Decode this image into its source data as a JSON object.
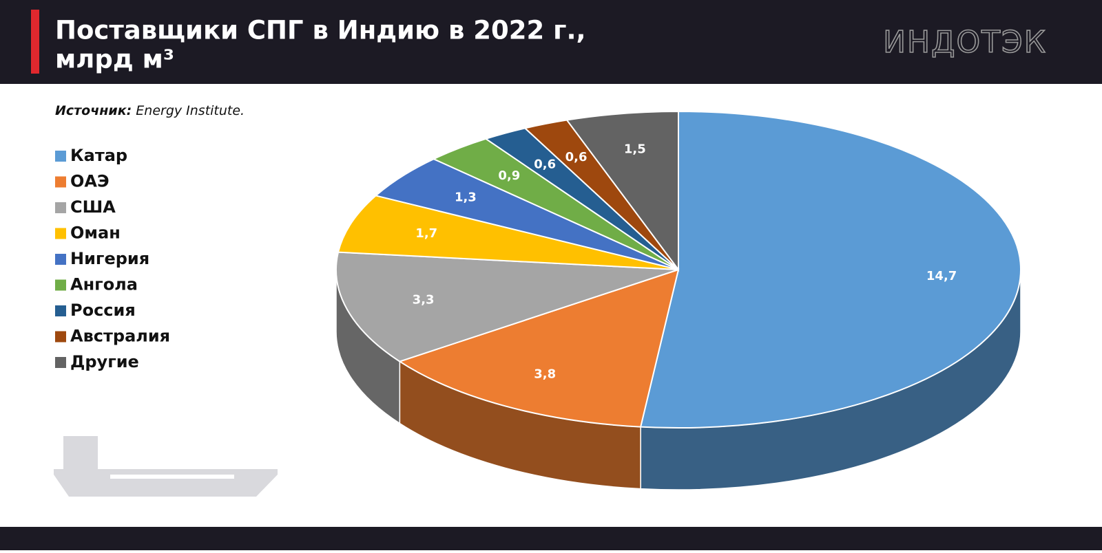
{
  "chart_data": {
    "type": "pie3d",
    "title": [
      "Поставщики СПГ в Индию в 2022 г.,",
      "млрд м³"
    ],
    "brand": "ИНДОТЭК",
    "source_label": "Источник:",
    "source": "Energy Institute.",
    "categories": [
      "Катар",
      "ОАЭ",
      "США",
      "Оман",
      "Нигерия",
      "Ангола",
      "Россия",
      "Австралия",
      "Другие"
    ],
    "values": [
      14.7,
      3.8,
      3.3,
      1.7,
      1.3,
      0.9,
      0.6,
      0.6,
      1.5
    ],
    "value_labels": [
      "14,7",
      "3,8",
      "3,3",
      "1,7",
      "1,3",
      "0,9",
      "0,6",
      "0,6",
      "1,5"
    ],
    "colors": [
      "#5b9bd5",
      "#ed7d31",
      "#a5a5a5",
      "#ffc000",
      "#4472c4",
      "#70ad47",
      "#255e91",
      "#9e480e",
      "#636363"
    ]
  }
}
